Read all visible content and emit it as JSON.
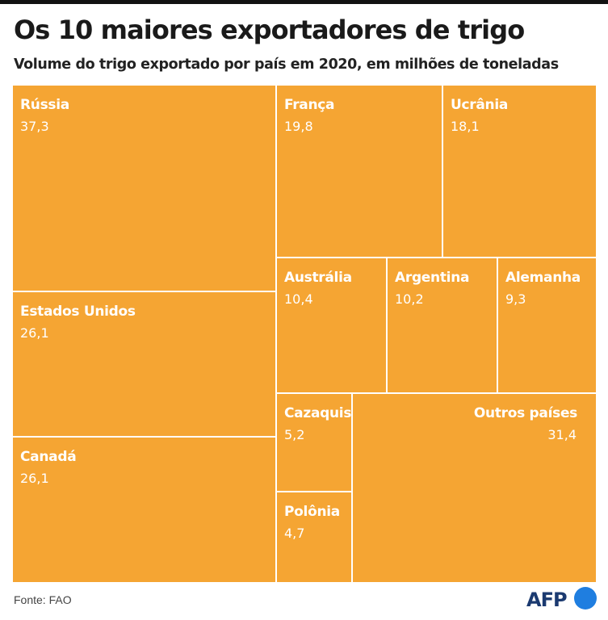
{
  "header": {
    "title": "Os 10 maiores exportadores de trigo",
    "subtitle": "Volume do trigo exportado por país em 2020, em milhões de toneladas"
  },
  "footer": {
    "source": "Fonte: FAO",
    "logo_text": "AFP"
  },
  "colors": {
    "tile": "#f5a533",
    "tile_border": "#ffffff",
    "label": "#ffffff",
    "logo_text": "#1b3a70",
    "logo_dot": "#1f7ee0"
  },
  "chart_data": {
    "type": "treemap",
    "title": "Os 10 maiores exportadores de trigo",
    "subtitle": "Volume do trigo exportado por país em 2020, em milhões de toneladas",
    "unit": "milhões de toneladas",
    "items": [
      {
        "name": "Rússia",
        "value": 37.3,
        "label": "37,3"
      },
      {
        "name": "Estados Unidos",
        "value": 26.1,
        "label": "26,1"
      },
      {
        "name": "Canadá",
        "value": 26.1,
        "label": "26,1"
      },
      {
        "name": "França",
        "value": 19.8,
        "label": "19,8"
      },
      {
        "name": "Ucrânia",
        "value": 18.1,
        "label": "18,1"
      },
      {
        "name": "Austrália",
        "value": 10.4,
        "label": "10,4"
      },
      {
        "name": "Argentina",
        "value": 10.2,
        "label": "10,2"
      },
      {
        "name": "Alemanha",
        "value": 9.3,
        "label": "9,3"
      },
      {
        "name": "Cazaquistão",
        "value": 5.2,
        "label": "5,2"
      },
      {
        "name": "Polônia",
        "value": 4.7,
        "label": "4,7"
      },
      {
        "name": "Outros países",
        "value": 31.4,
        "label": "31,4"
      }
    ]
  }
}
